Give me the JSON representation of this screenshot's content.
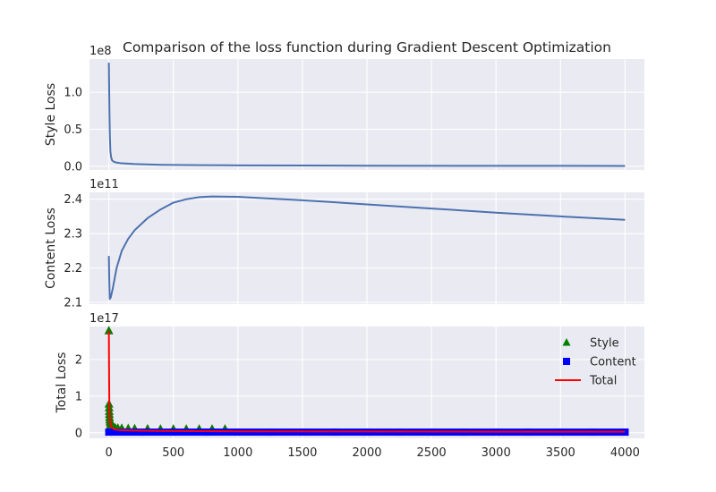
{
  "chart_data": {
    "type": "line",
    "title": "Comparison of the loss function during Gradient Descent Optimization",
    "x_ticks": [
      0,
      500,
      1000,
      1500,
      2000,
      2500,
      3000,
      3500,
      4000
    ],
    "xlim": [
      -150,
      4150
    ],
    "panels": [
      {
        "name": "style",
        "ylabel": "Style Loss",
        "offset_label": "1e8",
        "ylim": [
          -0.05,
          1.45
        ],
        "y_ticks": [
          0.0,
          0.5,
          1.0
        ],
        "y_tick_labels": [
          "0.0",
          "0.5",
          "1.0"
        ],
        "series": [
          {
            "type": "line",
            "color": "#4c72b0",
            "points": [
              [
                0,
                1.4
              ],
              [
                2,
                1.1
              ],
              [
                5,
                0.7
              ],
              [
                8,
                0.4
              ],
              [
                12,
                0.2
              ],
              [
                18,
                0.12
              ],
              [
                25,
                0.08
              ],
              [
                40,
                0.06
              ],
              [
                60,
                0.05
              ],
              [
                100,
                0.04
              ],
              [
                200,
                0.03
              ],
              [
                400,
                0.02
              ],
              [
                700,
                0.015
              ],
              [
                1000,
                0.012
              ],
              [
                1500,
                0.01
              ],
              [
                2000,
                0.008
              ],
              [
                3000,
                0.006
              ],
              [
                4000,
                0.005
              ]
            ]
          }
        ]
      },
      {
        "name": "content",
        "ylabel": "Content Loss",
        "offset_label": "1e11",
        "ylim": [
          2.095,
          2.42
        ],
        "y_ticks": [
          2.1,
          2.2,
          2.3,
          2.4
        ],
        "y_tick_labels": [
          "2.1",
          "2.2",
          "2.3",
          "2.4"
        ],
        "series": [
          {
            "type": "line",
            "color": "#4c72b0",
            "points": [
              [
                0,
                2.235
              ],
              [
                3,
                2.17
              ],
              [
                7,
                2.11
              ],
              [
                15,
                2.115
              ],
              [
                30,
                2.14
              ],
              [
                60,
                2.2
              ],
              [
                100,
                2.25
              ],
              [
                150,
                2.285
              ],
              [
                200,
                2.31
              ],
              [
                300,
                2.345
              ],
              [
                400,
                2.37
              ],
              [
                500,
                2.39
              ],
              [
                600,
                2.4
              ],
              [
                700,
                2.406
              ],
              [
                800,
                2.408
              ],
              [
                1000,
                2.407
              ],
              [
                1500,
                2.397
              ],
              [
                2000,
                2.385
              ],
              [
                2500,
                2.373
              ],
              [
                3000,
                2.361
              ],
              [
                3500,
                2.35
              ],
              [
                4000,
                2.34
              ]
            ]
          }
        ]
      },
      {
        "name": "total",
        "ylabel": "Total Loss",
        "offset_label": "1e17",
        "ylim": [
          -0.15,
          2.9
        ],
        "y_ticks": [
          0,
          1,
          2
        ],
        "y_tick_labels": [
          "0",
          "1",
          "2"
        ],
        "series": [
          {
            "name": "Style",
            "type": "scatter",
            "marker": "triangle",
            "color": "#008000",
            "points": [
              [
                0,
                2.78
              ],
              [
                1,
                0.78
              ],
              [
                2,
                0.68
              ],
              [
                3,
                0.58
              ],
              [
                4,
                0.5
              ],
              [
                5,
                0.42
              ],
              [
                7,
                0.35
              ],
              [
                9,
                0.3
              ],
              [
                12,
                0.25
              ],
              [
                15,
                0.21
              ],
              [
                20,
                0.18
              ],
              [
                25,
                0.16
              ],
              [
                30,
                0.15
              ],
              [
                40,
                0.14
              ],
              [
                50,
                0.13
              ],
              [
                70,
                0.125
              ],
              [
                100,
                0.12
              ],
              [
                150,
                0.115
              ],
              [
                200,
                0.11
              ],
              [
                300,
                0.105
              ],
              [
                400,
                0.1
              ],
              [
                500,
                0.1
              ],
              [
                600,
                0.1
              ],
              [
                700,
                0.1
              ],
              [
                800,
                0.1
              ],
              [
                900,
                0.1
              ]
            ]
          },
          {
            "name": "Content",
            "type": "scatter",
            "marker": "square",
            "color": "#0000ff",
            "points": [
              [
                0,
                0.02
              ],
              [
                250,
                0.02
              ],
              [
                500,
                0.02
              ],
              [
                750,
                0.02
              ],
              [
                1000,
                0.02
              ],
              [
                1250,
                0.02
              ],
              [
                1500,
                0.02
              ],
              [
                1750,
                0.02
              ],
              [
                2000,
                0.02
              ],
              [
                2250,
                0.02
              ],
              [
                2500,
                0.02
              ],
              [
                2750,
                0.02
              ],
              [
                3000,
                0.02
              ],
              [
                3250,
                0.02
              ],
              [
                3500,
                0.02
              ],
              [
                3750,
                0.02
              ],
              [
                4000,
                0.02
              ]
            ]
          },
          {
            "name": "Total",
            "type": "line",
            "color": "#ff0000",
            "points": [
              [
                0,
                2.78
              ],
              [
                2,
                1.5
              ],
              [
                4,
                0.7
              ],
              [
                6,
                0.45
              ],
              [
                10,
                0.3
              ],
              [
                15,
                0.2
              ],
              [
                25,
                0.14
              ],
              [
                40,
                0.1
              ],
              [
                70,
                0.08
              ],
              [
                120,
                0.07
              ],
              [
                200,
                0.06
              ],
              [
                400,
                0.05
              ],
              [
                1000,
                0.04
              ],
              [
                2000,
                0.035
              ],
              [
                3000,
                0.03
              ],
              [
                4000,
                0.03
              ]
            ]
          }
        ]
      }
    ],
    "legend": {
      "placement": "upper-right",
      "entries": [
        "Style",
        "Content",
        "Total"
      ]
    }
  }
}
